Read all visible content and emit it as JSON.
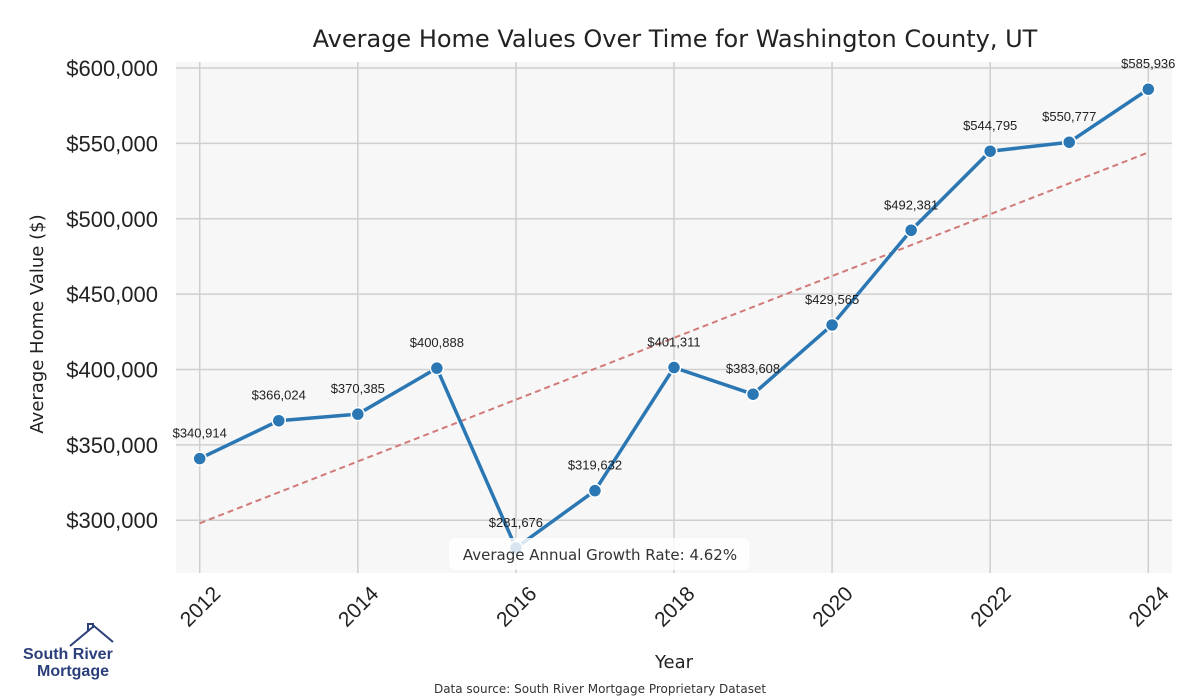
{
  "chart_data": {
    "type": "line",
    "title": "Average Home Values Over Time for Washington County, UT",
    "xlabel": "Year",
    "ylabel": "Average Home Value ($)",
    "x": [
      2012,
      2013,
      2014,
      2015,
      2016,
      2017,
      2018,
      2019,
      2020,
      2021,
      2022,
      2023,
      2024
    ],
    "values": [
      340914,
      366024,
      370385,
      400888,
      281676,
      319632,
      401311,
      383608,
      429565,
      492381,
      544795,
      550777,
      585936
    ],
    "data_labels": [
      "$340,914",
      "$366,024",
      "$370,385",
      "$400,888",
      "$281,676",
      "$319,632",
      "$401,311",
      "$383,608",
      "$429,565",
      "$492,381",
      "$544,795",
      "$550,777",
      "$585,936"
    ],
    "xticks": [
      "2012",
      "2014",
      "2016",
      "2018",
      "2020",
      "2022",
      "2024"
    ],
    "xlim": [
      2011.7,
      2024.3
    ],
    "yticks": [
      300000,
      350000,
      400000,
      450000,
      500000,
      550000,
      600000
    ],
    "ytick_labels": [
      "$300,000",
      "$350,000",
      "$400,000",
      "$450,000",
      "$500,000",
      "$550,000",
      "$600,000"
    ],
    "ylim": [
      265000,
      604000
    ],
    "trendline": {
      "start": [
        2012,
        298000
      ],
      "end": [
        2024,
        544000
      ],
      "style": "dashed"
    },
    "grid": true,
    "annotation": "Average Annual Growth Rate: 4.62%",
    "series_color": "#2a77b4",
    "trend_color": "#d17a78",
    "background_color": "#f7f7f7",
    "grid_color": "#cfcfcf"
  },
  "footer": {
    "source": "Data source: South River Mortgage Proprietary Dataset"
  },
  "logo": {
    "line1": "South River",
    "line2": "Mortgage",
    "icon": "house-icon",
    "color": "#2b3f7a"
  }
}
